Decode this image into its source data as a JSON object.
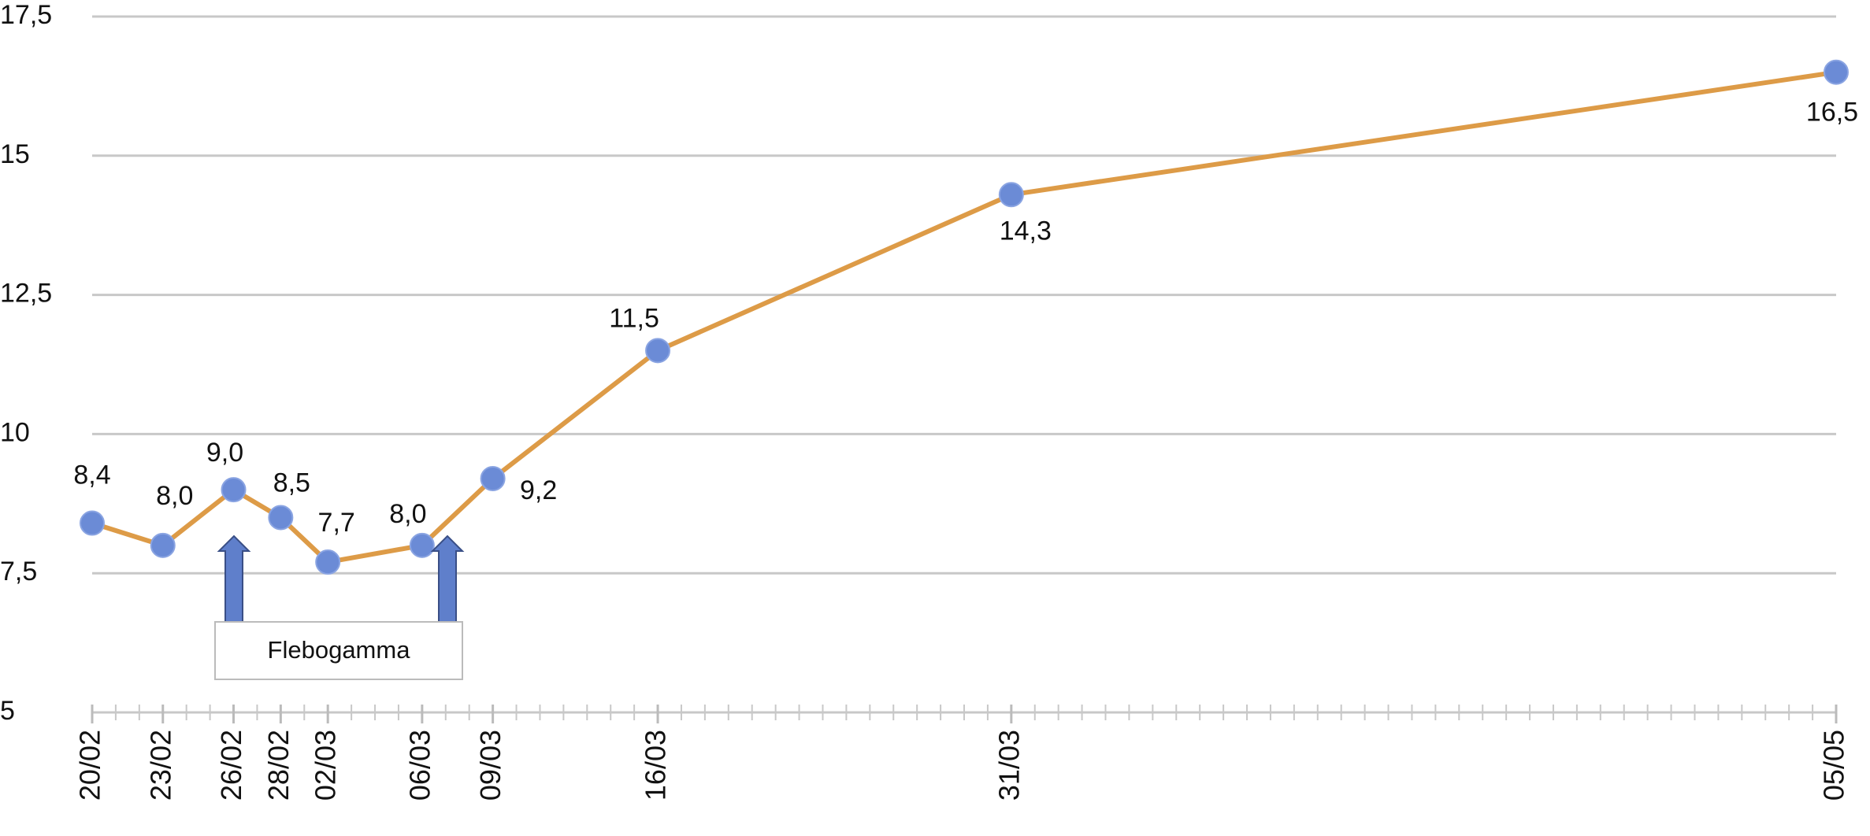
{
  "chart_data": {
    "type": "line",
    "x": [
      "20/02",
      "23/02",
      "26/02",
      "28/02",
      "02/03",
      "06/03",
      "09/03",
      "16/03",
      "31/03",
      "05/05"
    ],
    "xlim": [
      "20/02",
      "05/05"
    ],
    "series": [
      {
        "color": "#dd9b47",
        "marker_color": "#6b8bd6",
        "values": [
          8.4,
          8.0,
          9.0,
          8.5,
          7.7,
          8.0,
          9.2,
          11.5,
          14.3,
          16.5
        ],
        "value_labels": [
          "8,4",
          "8,0",
          "9,0",
          "8,5",
          "7,7",
          "8,0",
          "9,2",
          "11,5",
          "14,3",
          "16,5"
        ]
      }
    ],
    "ylim": [
      5,
      17.5
    ],
    "yticks": [
      5,
      {
        "value": 7.5,
        "label": "7,5"
      },
      10,
      {
        "value": 12.5,
        "label": "12,5"
      },
      15,
      {
        "value": 17.5,
        "label": "17,5"
      }
    ],
    "grid": true,
    "annotation": "Flebogamma"
  }
}
